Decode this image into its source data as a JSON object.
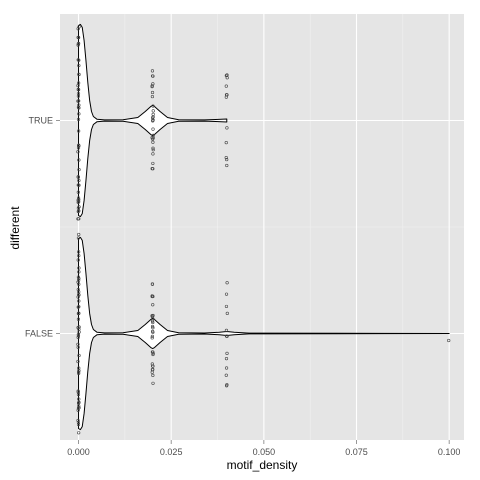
{
  "chart_data": {
    "type": "violin",
    "xlabel": "motif_density",
    "ylabel": "different",
    "xlim": [
      -0.005,
      0.104
    ],
    "x_ticks": [
      {
        "value": 0.0,
        "label": "0.000"
      },
      {
        "value": 0.025,
        "label": "0.025"
      },
      {
        "value": 0.05,
        "label": "0.050"
      },
      {
        "value": 0.075,
        "label": "0.075"
      },
      {
        "value": 0.1,
        "label": "0.100"
      }
    ],
    "categories": [
      "FALSE",
      "TRUE"
    ],
    "violins": [
      {
        "category": "FALSE",
        "profile": [
          [
            0.0,
            0.95
          ],
          [
            0.0005,
            0.96
          ],
          [
            0.001,
            0.93
          ],
          [
            0.0015,
            0.8
          ],
          [
            0.002,
            0.6
          ],
          [
            0.0025,
            0.38
          ],
          [
            0.003,
            0.2
          ],
          [
            0.0035,
            0.09
          ],
          [
            0.004,
            0.04
          ],
          [
            0.005,
            0.012
          ],
          [
            0.007,
            0.006
          ],
          [
            0.012,
            0.008
          ],
          [
            0.016,
            0.03
          ],
          [
            0.018,
            0.09
          ],
          [
            0.0195,
            0.14
          ],
          [
            0.02,
            0.15
          ],
          [
            0.0205,
            0.14
          ],
          [
            0.022,
            0.09
          ],
          [
            0.024,
            0.03
          ],
          [
            0.027,
            0.008
          ],
          [
            0.034,
            0.005
          ],
          [
            0.038,
            0.012
          ],
          [
            0.04,
            0.02
          ],
          [
            0.042,
            0.012
          ],
          [
            0.046,
            0.004
          ],
          [
            0.07,
            0.002
          ],
          [
            0.1,
            0.0
          ]
        ],
        "points": [
          {
            "x": 0.0,
            "n": 54
          },
          {
            "x": 0.02,
            "n": 30
          },
          {
            "x": 0.04,
            "n": 13
          },
          {
            "x": 0.1,
            "n": 1
          }
        ]
      },
      {
        "category": "TRUE",
        "profile": [
          [
            0.0,
            0.95
          ],
          [
            0.0005,
            0.96
          ],
          [
            0.001,
            0.93
          ],
          [
            0.0015,
            0.8
          ],
          [
            0.002,
            0.6
          ],
          [
            0.0025,
            0.38
          ],
          [
            0.003,
            0.2
          ],
          [
            0.0035,
            0.09
          ],
          [
            0.004,
            0.04
          ],
          [
            0.005,
            0.012
          ],
          [
            0.007,
            0.006
          ],
          [
            0.012,
            0.008
          ],
          [
            0.016,
            0.03
          ],
          [
            0.018,
            0.09
          ],
          [
            0.0195,
            0.14
          ],
          [
            0.02,
            0.15
          ],
          [
            0.0205,
            0.14
          ],
          [
            0.022,
            0.09
          ],
          [
            0.024,
            0.03
          ],
          [
            0.027,
            0.008
          ],
          [
            0.034,
            0.006
          ],
          [
            0.037,
            0.01
          ],
          [
            0.04,
            0.015
          ],
          [
            0.04,
            0.0
          ]
        ],
        "points": [
          {
            "x": 0.0,
            "n": 50
          },
          {
            "x": 0.02,
            "n": 28
          },
          {
            "x": 0.04,
            "n": 12
          }
        ]
      }
    ],
    "grid": true,
    "legend": "none"
  }
}
